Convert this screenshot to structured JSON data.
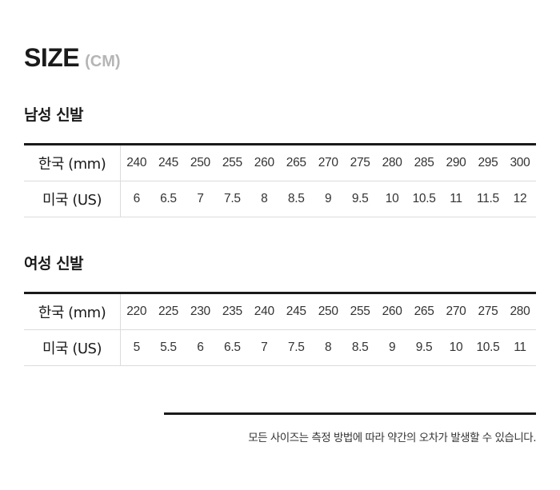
{
  "title": {
    "main": "SIZE",
    "unit": "(CM)"
  },
  "men": {
    "heading": "남성 신발",
    "kr_label": "한국 (mm)",
    "us_label": "미국 (US)",
    "kr": [
      "240",
      "245",
      "250",
      "255",
      "260",
      "265",
      "270",
      "275",
      "280",
      "285",
      "290",
      "295",
      "300"
    ],
    "us": [
      "6",
      "6.5",
      "7",
      "7.5",
      "8",
      "8.5",
      "9",
      "9.5",
      "10",
      "10.5",
      "11",
      "11.5",
      "12"
    ]
  },
  "women": {
    "heading": "여성 신발",
    "kr_label": "한국 (mm)",
    "us_label": "미국 (US)",
    "kr": [
      "220",
      "225",
      "230",
      "235",
      "240",
      "245",
      "250",
      "255",
      "260",
      "265",
      "270",
      "275",
      "280"
    ],
    "us": [
      "5",
      "5.5",
      "6",
      "6.5",
      "7",
      "7.5",
      "8",
      "8.5",
      "9",
      "9.5",
      "10",
      "10.5",
      "11"
    ]
  },
  "note": "모든 사이즈는 측정 방법에 따라 약간의 오차가 발생할 수 있습니다."
}
